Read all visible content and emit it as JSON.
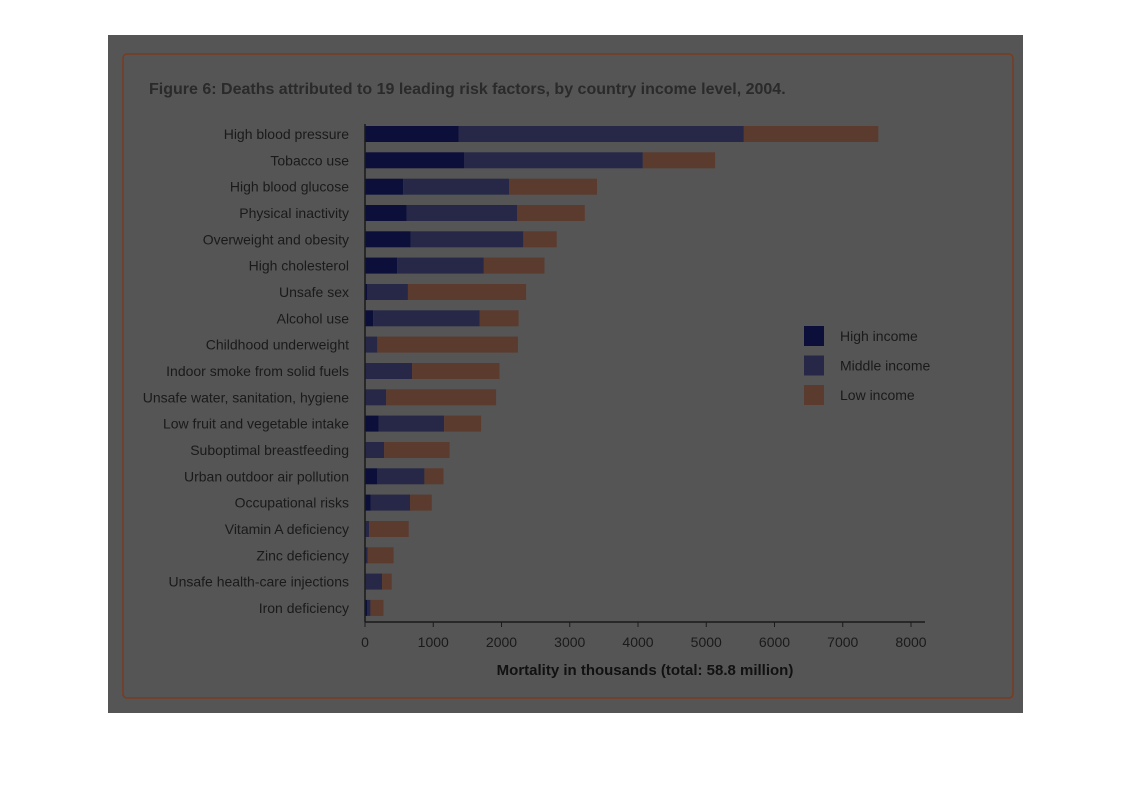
{
  "chart_data": {
    "type": "bar",
    "orientation": "horizontal",
    "stacked": true,
    "title": "Figure 6: Deaths attributed to 19 leading risk factors, by country income level, 2004.",
    "xlabel": "Mortality in thousands (total: 58.8 million)",
    "ylabel": "",
    "xlim": [
      0,
      8000
    ],
    "x_ticks": [
      "0",
      "1000",
      "2000",
      "3000",
      "4000",
      "5000",
      "6000",
      "7000",
      "8000"
    ],
    "grid": false,
    "legend_position": "right",
    "categories": [
      "High blood pressure",
      "Tobacco use",
      "High blood glucose",
      "Physical inactivity",
      "Overweight and obesity",
      "High cholesterol",
      "Unsafe sex",
      "Alcohol use",
      "Childhood underweight",
      "Indoor smoke from solid fuels",
      "Unsafe water, sanitation, hygiene",
      "Low fruit and vegetable intake",
      "Suboptimal breastfeeding",
      "Urban outdoor air pollution",
      "Occupational risks",
      "Vitamin A deficiency",
      "Zinc deficiency",
      "Unsafe health-care injections",
      "Iron deficiency"
    ],
    "series": [
      {
        "name": "High income",
        "color": "#0b0f3a",
        "values": [
          1370,
          1450,
          560,
          610,
          670,
          470,
          30,
          120,
          10,
          0,
          10,
          200,
          10,
          180,
          80,
          0,
          0,
          10,
          30
        ]
      },
      {
        "name": "Middle income",
        "color": "#272847",
        "values": [
          4180,
          2620,
          1550,
          1620,
          1650,
          1270,
          600,
          1560,
          170,
          690,
          300,
          960,
          270,
          690,
          580,
          60,
          40,
          240,
          50
        ]
      },
      {
        "name": "Low income",
        "color": "#5b3b2e",
        "values": [
          1970,
          1060,
          1290,
          990,
          490,
          890,
          1730,
          570,
          2060,
          1280,
          1610,
          540,
          960,
          280,
          320,
          580,
          380,
          140,
          190
        ]
      }
    ]
  }
}
